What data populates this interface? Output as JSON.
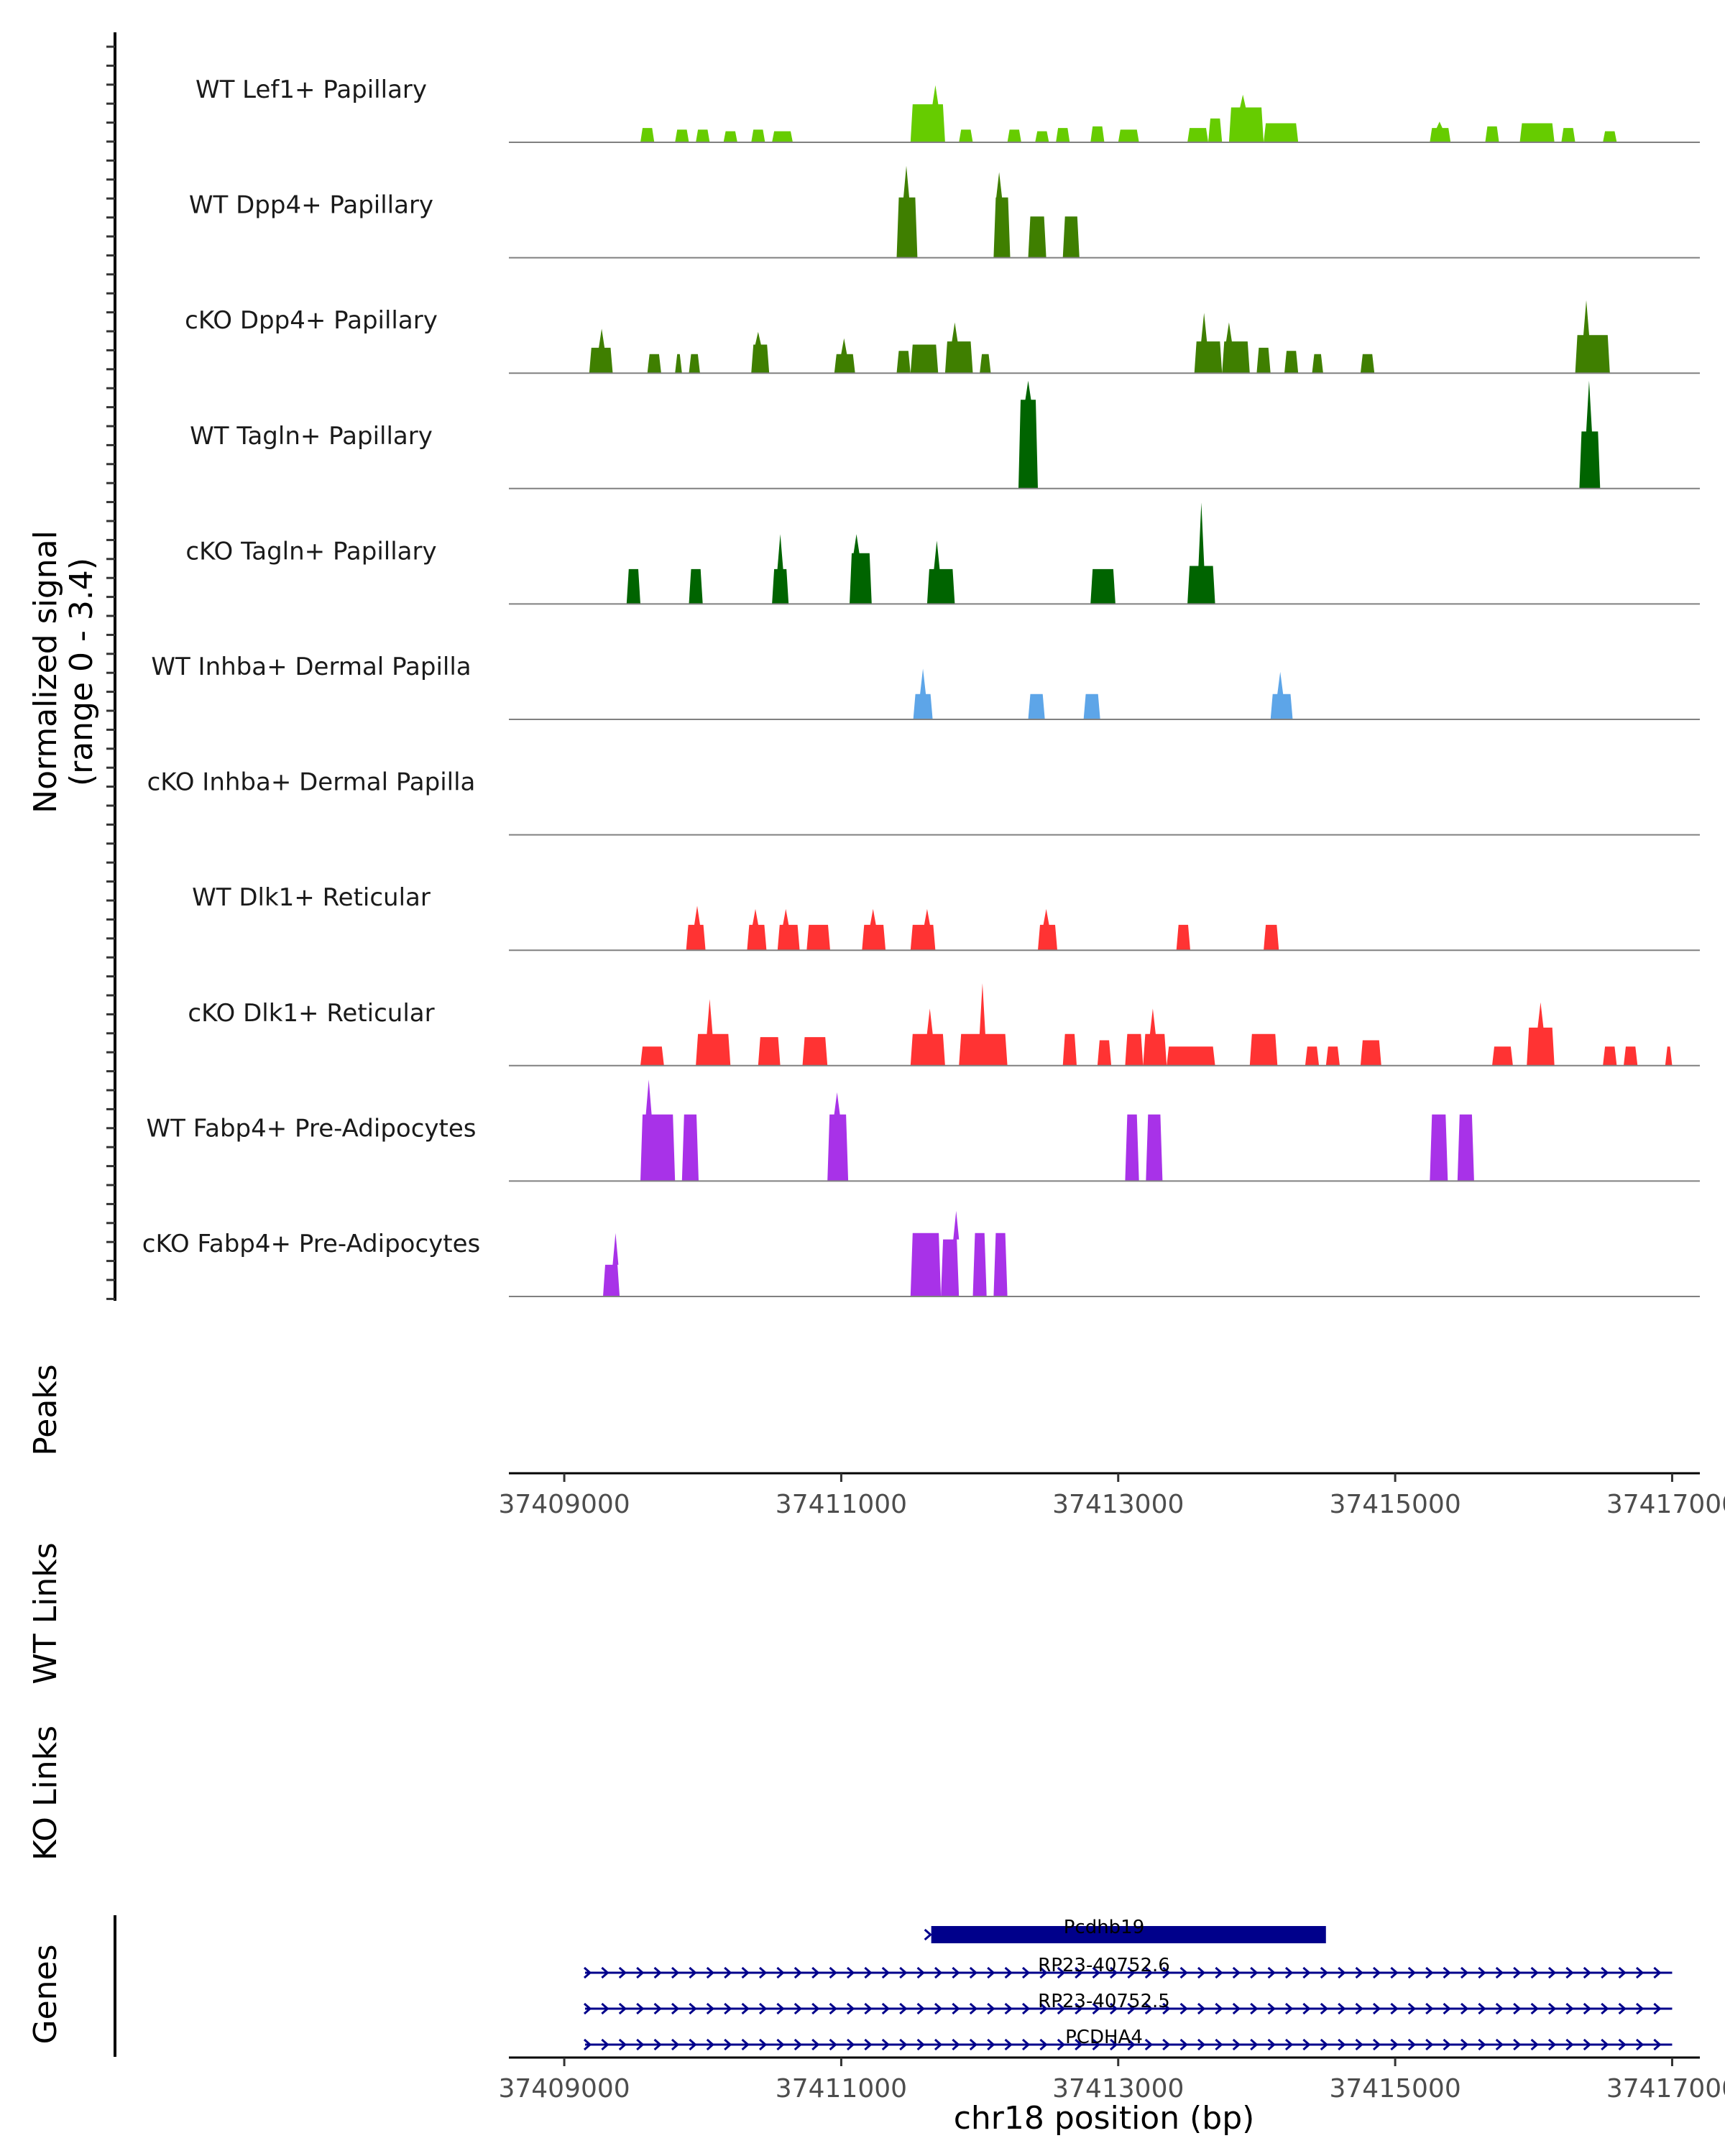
{
  "chart_data": {
    "type": "area",
    "region": {
      "chromosome": "chr18",
      "start": 37408600,
      "end": 37417200
    },
    "ylabel": "Normalized signal",
    "ylabel_range": "(range 0 - 3.4)",
    "ylim": [
      0,
      3.4
    ],
    "xlabel": "chr18 position (bp)",
    "xticks": [
      37409000,
      37411000,
      37413000,
      37415000,
      37417000
    ],
    "xtick_labels": [
      "37409000",
      "37411000",
      "37413000",
      "37415000",
      "37417000"
    ],
    "tracks": [
      {
        "name": "WT Lef1+ Papillary",
        "color": "#66CC00",
        "peaks": [
          [
            37409550,
            37409650,
            0.45
          ],
          [
            37409800,
            37409900,
            0.4
          ],
          [
            37409950,
            37410050,
            0.4
          ],
          [
            37410150,
            37410250,
            0.35
          ],
          [
            37410350,
            37410450,
            0.4
          ],
          [
            37410500,
            37410650,
            0.35
          ],
          [
            37411500,
            37411750,
            1.2,
            37411680,
            1.8
          ],
          [
            37411850,
            37411950,
            0.4
          ],
          [
            37412200,
            37412300,
            0.4
          ],
          [
            37412400,
            37412500,
            0.35
          ],
          [
            37412550,
            37412650,
            0.45
          ],
          [
            37412800,
            37412900,
            0.5
          ],
          [
            37413000,
            37413150,
            0.4
          ],
          [
            37413500,
            37413650,
            0.45
          ],
          [
            37413650,
            37413750,
            0.75
          ],
          [
            37413800,
            37414050,
            1.1,
            37413900,
            1.5
          ],
          [
            37414050,
            37414300,
            0.6
          ],
          [
            37415250,
            37415400,
            0.45,
            37415320,
            0.65
          ],
          [
            37415650,
            37415750,
            0.5
          ],
          [
            37415900,
            37416150,
            0.6
          ],
          [
            37416200,
            37416300,
            0.45
          ],
          [
            37416500,
            37416600,
            0.35
          ]
        ]
      },
      {
        "name": "WT Dpp4+ Papillary",
        "color": "#3F7F00",
        "peaks": [
          [
            37411400,
            37411550,
            1.9,
            37411470,
            2.9
          ],
          [
            37412100,
            37412220,
            1.9,
            37412140,
            2.7
          ],
          [
            37412350,
            37412480,
            1.3
          ],
          [
            37412600,
            37412720,
            1.3
          ]
        ]
      },
      {
        "name": "cKO Dpp4+ Papillary",
        "color": "#3F7F00",
        "peaks": [
          [
            37409180,
            37409350,
            0.8,
            37409270,
            1.4
          ],
          [
            37409600,
            37409700,
            0.6
          ],
          [
            37409800,
            37409850,
            0.6
          ],
          [
            37409900,
            37409980,
            0.6
          ],
          [
            37410350,
            37410480,
            0.9,
            37410400,
            1.3
          ],
          [
            37410950,
            37411100,
            0.6,
            37411020,
            1.1
          ],
          [
            37411400,
            37411500,
            0.7
          ],
          [
            37411500,
            37411700,
            0.9
          ],
          [
            37411750,
            37411950,
            1.0,
            37411820,
            1.6
          ],
          [
            37412000,
            37412080,
            0.6
          ],
          [
            37413550,
            37413750,
            1.0,
            37413620,
            1.9
          ],
          [
            37413750,
            37413950,
            1.0,
            37413800,
            1.6
          ],
          [
            37414000,
            37414100,
            0.8
          ],
          [
            37414200,
            37414300,
            0.7
          ],
          [
            37414400,
            37414480,
            0.6
          ],
          [
            37414750,
            37414850,
            0.6
          ],
          [
            37416300,
            37416550,
            1.2,
            37416380,
            2.3
          ]
        ]
      },
      {
        "name": "WT Tagln+ Papillary",
        "color": "#006400",
        "peaks": [
          [
            37412280,
            37412420,
            2.8,
            37412350,
            3.4
          ],
          [
            37416330,
            37416480,
            1.8,
            37416400,
            3.4
          ]
        ]
      },
      {
        "name": "cKO Tagln+ Papillary",
        "color": "#006400",
        "peaks": [
          [
            37409450,
            37409550,
            1.1
          ],
          [
            37409900,
            37410000,
            1.1
          ],
          [
            37410500,
            37410620,
            1.1,
            37410560,
            2.2
          ],
          [
            37411060,
            37411220,
            1.6,
            37411110,
            2.2
          ],
          [
            37411620,
            37411820,
            1.1,
            37411690,
            2.0
          ],
          [
            37412800,
            37412980,
            1.1
          ],
          [
            37413500,
            37413700,
            1.2,
            37413600,
            3.2
          ]
        ]
      },
      {
        "name": "WT Inhba+ Dermal Papilla",
        "color": "#5DA5E8",
        "peaks": [
          [
            37411520,
            37411660,
            0.8,
            37411590,
            1.6
          ],
          [
            37412350,
            37412470,
            0.8
          ],
          [
            37412750,
            37412870,
            0.8
          ],
          [
            37414100,
            37414260,
            0.8,
            37414170,
            1.5
          ]
        ]
      },
      {
        "name": "cKO Inhba+ Dermal Papilla",
        "color": "#5DA5E8",
        "peaks": []
      },
      {
        "name": "WT Dlk1+ Reticular",
        "color": "#FF3333",
        "peaks": [
          [
            37409880,
            37410020,
            0.8,
            37409960,
            1.4
          ],
          [
            37410320,
            37410460,
            0.8,
            37410380,
            1.3
          ],
          [
            37410540,
            37410700,
            0.8,
            37410600,
            1.3
          ],
          [
            37410750,
            37410920,
            0.8
          ],
          [
            37411150,
            37411320,
            0.8,
            37411230,
            1.3
          ],
          [
            37411500,
            37411680,
            0.8,
            37411620,
            1.3
          ],
          [
            37412420,
            37412560,
            0.8,
            37412480,
            1.3
          ],
          [
            37413420,
            37413520,
            0.8
          ],
          [
            37414050,
            37414160,
            0.8
          ]
        ]
      },
      {
        "name": "cKO Dlk1+ Reticular",
        "color": "#FF3333",
        "peaks": [
          [
            37409550,
            37409720,
            0.6
          ],
          [
            37409950,
            37410200,
            1.0,
            37410050,
            2.1
          ],
          [
            37410400,
            37410560,
            0.9
          ],
          [
            37410720,
            37410900,
            0.9
          ],
          [
            37411500,
            37411750,
            1.0,
            37411640,
            1.8
          ],
          [
            37411850,
            37412200,
            1.0,
            37412020,
            2.6
          ],
          [
            37412600,
            37412700,
            1.0
          ],
          [
            37412850,
            37412950,
            0.8
          ],
          [
            37413050,
            37413180,
            1.0
          ],
          [
            37413180,
            37413350,
            1.0,
            37413250,
            1.8
          ],
          [
            37413350,
            37413700,
            0.6
          ],
          [
            37413950,
            37414150,
            1.0
          ],
          [
            37414350,
            37414450,
            0.6
          ],
          [
            37414500,
            37414600,
            0.6
          ],
          [
            37414750,
            37414900,
            0.8
          ],
          [
            37415700,
            37415850,
            0.6
          ],
          [
            37415950,
            37416150,
            1.2,
            37416050,
            2.0
          ],
          [
            37416500,
            37416600,
            0.6
          ],
          [
            37416650,
            37416750,
            0.6
          ],
          [
            37416950,
            37417000,
            0.6
          ]
        ]
      },
      {
        "name": "WT Fabp4+ Pre-Adipocytes",
        "color": "#A832E8",
        "peaks": [
          [
            37409550,
            37409800,
            2.1,
            37409610,
            3.2
          ],
          [
            37409850,
            37409970,
            2.1
          ],
          [
            37410900,
            37411050,
            2.1,
            37410970,
            2.8
          ],
          [
            37413050,
            37413150,
            2.1
          ],
          [
            37413200,
            37413320,
            2.1
          ],
          [
            37415250,
            37415380,
            2.1
          ],
          [
            37415450,
            37415570,
            2.1
          ]
        ]
      },
      {
        "name": "cKO Fabp4+ Pre-Adipocytes",
        "color": "#A832E8",
        "peaks": [
          [
            37409280,
            37409400,
            1.0,
            37409370,
            2.0
          ],
          [
            37411500,
            37411720,
            2.0
          ],
          [
            37411720,
            37411850,
            1.8,
            37411830,
            2.7
          ],
          [
            37411950,
            37412050,
            2.0
          ],
          [
            37412100,
            37412200,
            2.0
          ]
        ]
      }
    ],
    "side_panels": [
      "Peaks",
      "WT Links",
      "KO Links",
      "Genes"
    ],
    "genes": [
      {
        "name": "Pcdhb19",
        "start": 37411650,
        "end": 37414500,
        "strand": "+",
        "type": "exon"
      },
      {
        "name": "RP23-40752.6",
        "start": 37409150,
        "end": 37417000,
        "strand": "+",
        "type": "intron"
      },
      {
        "name": "RP23-40752.5",
        "start": 37409150,
        "end": 37417000,
        "strand": "+",
        "type": "intron"
      },
      {
        "name": "PCDHA4",
        "start": 37409150,
        "end": 37417000,
        "strand": "+",
        "type": "intron"
      }
    ],
    "gene_color": "#00008B"
  }
}
